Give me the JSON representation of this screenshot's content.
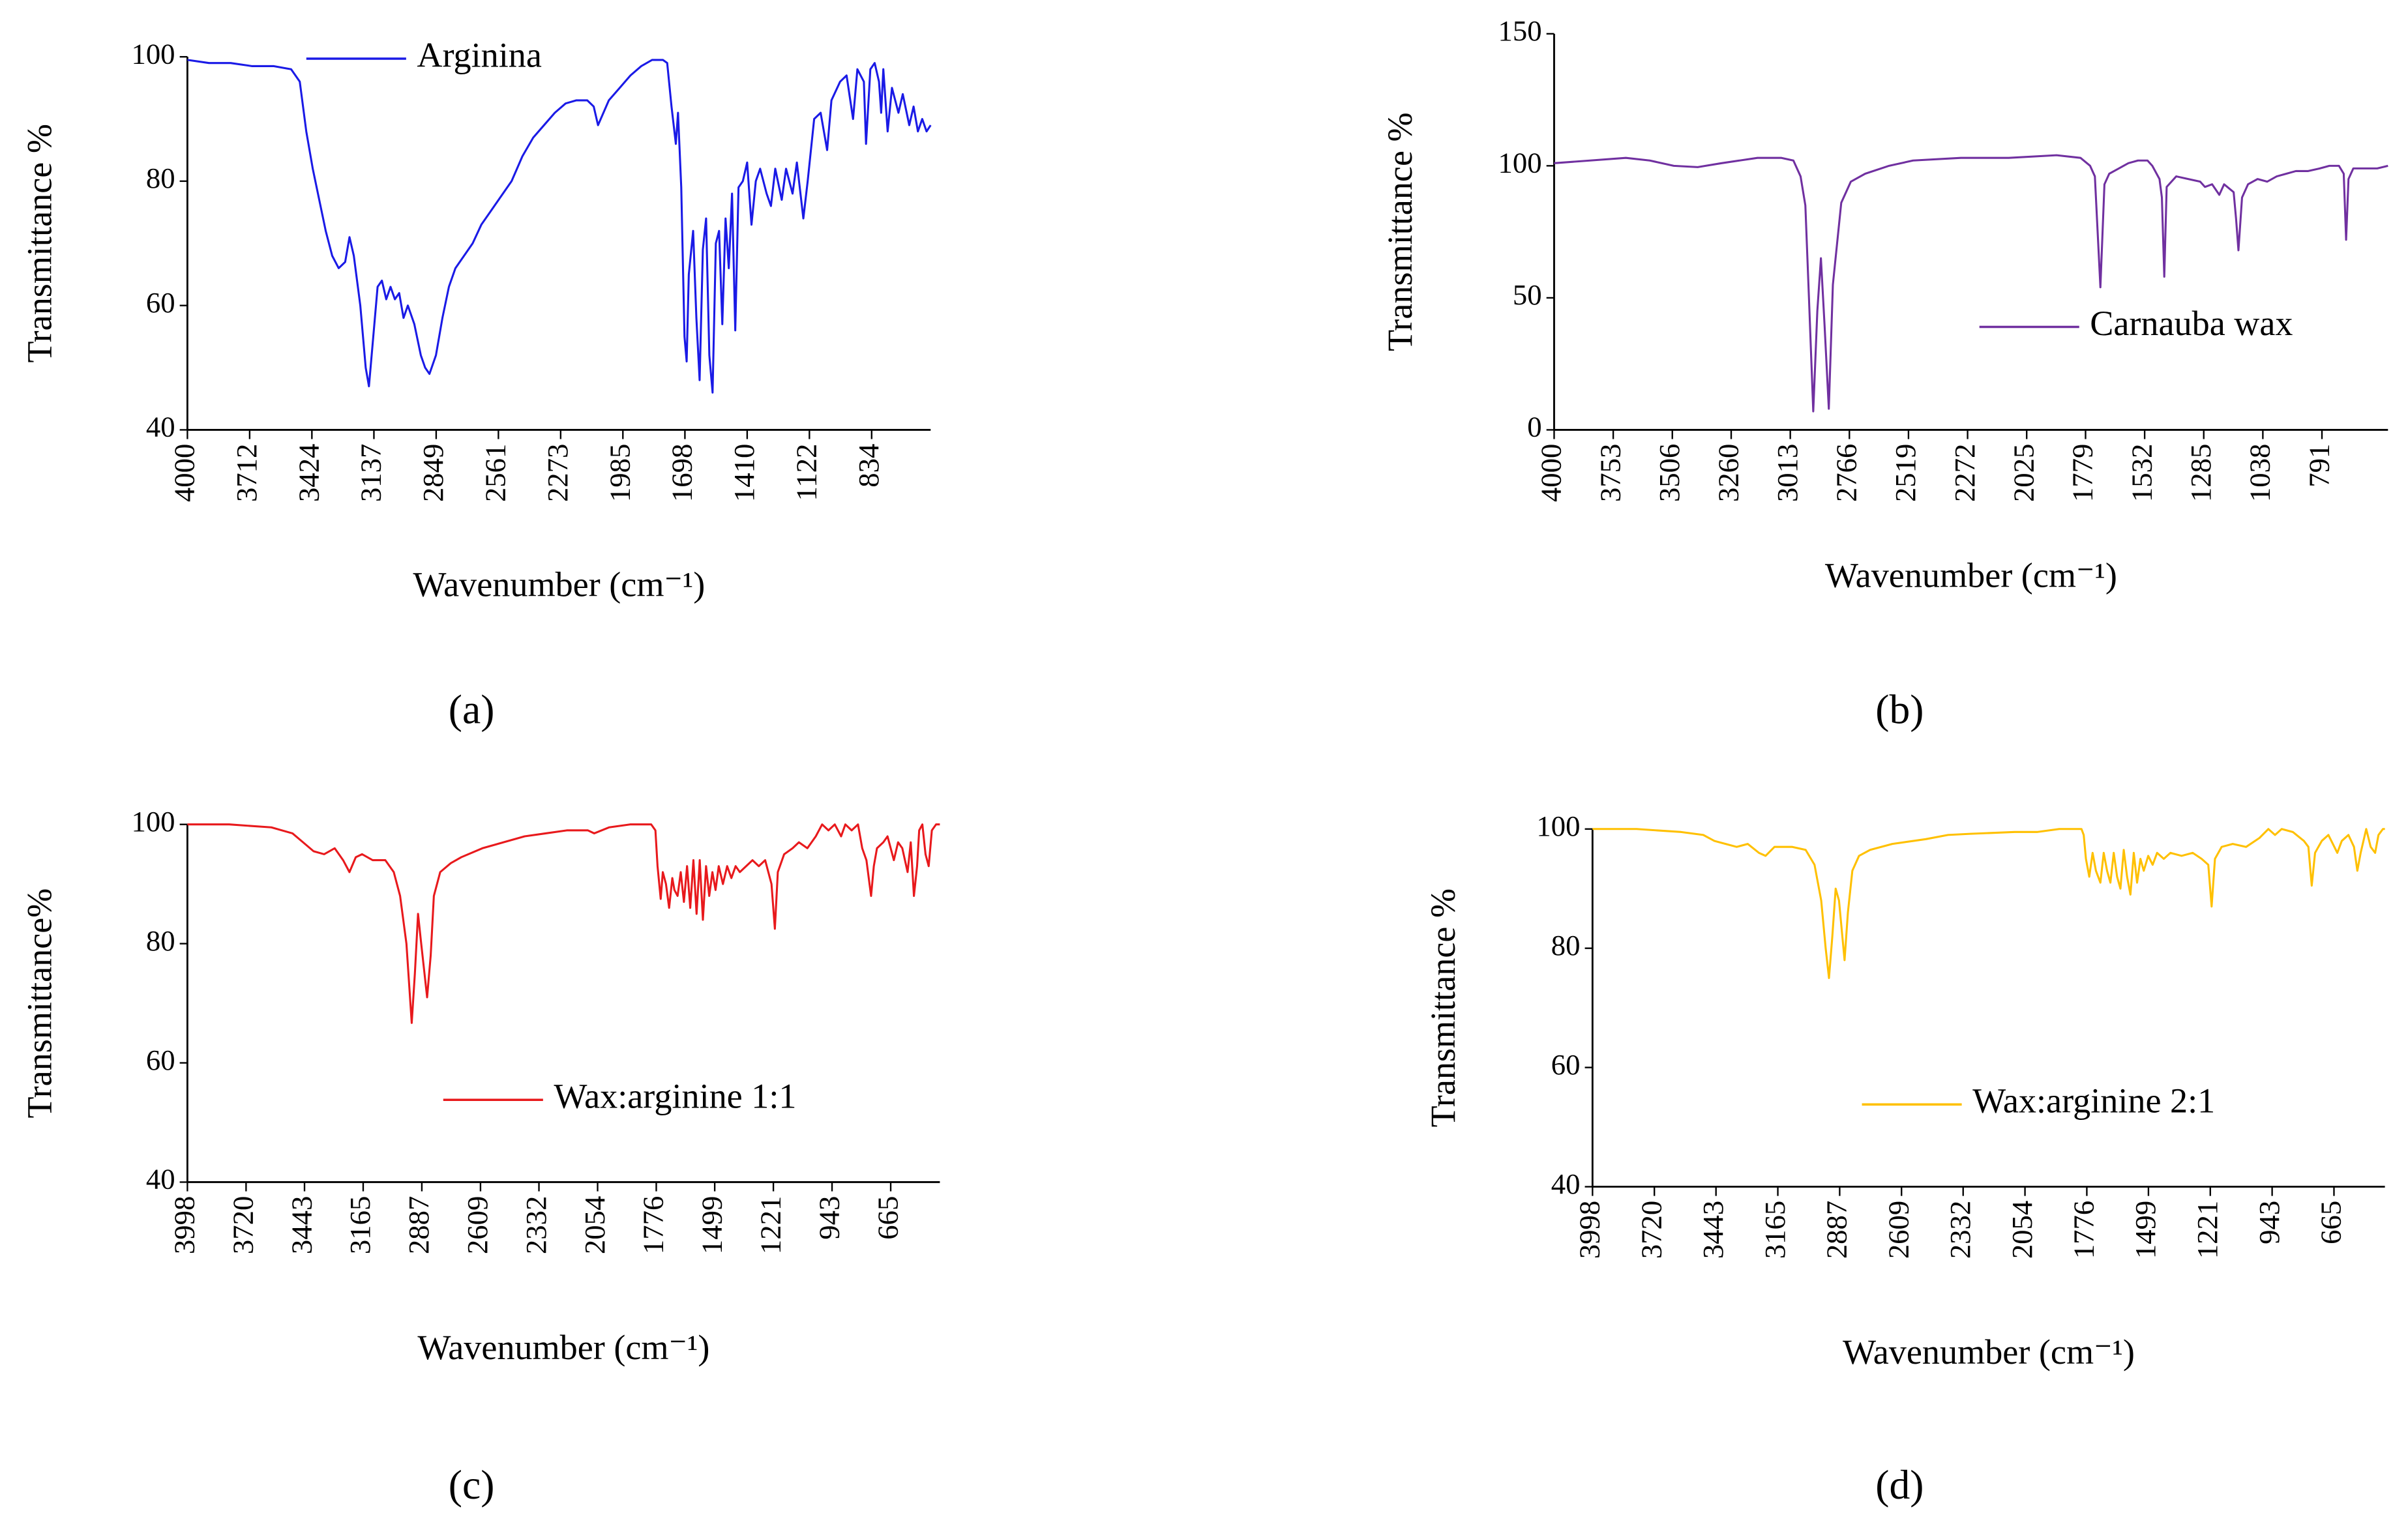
{
  "chart_data": [
    {
      "type": "line",
      "caption": "(a)",
      "xlabel": "Wavenumber (cm⁻¹)",
      "ylabel": "Transmittance %",
      "legend": "upper left",
      "xlim": [
        4000,
        561
      ],
      "ylim": [
        40,
        100
      ],
      "xticks": [
        4000,
        3712,
        3424,
        3137,
        2849,
        2561,
        2273,
        1985,
        1698,
        1410,
        1122,
        834
      ],
      "yticks": [
        40,
        60,
        80,
        100
      ],
      "x": [
        4000,
        3900,
        3800,
        3700,
        3600,
        3520,
        3480,
        3450,
        3420,
        3390,
        3360,
        3330,
        3300,
        3270,
        3250,
        3230,
        3200,
        3175,
        3160,
        3140,
        3120,
        3100,
        3080,
        3060,
        3040,
        3020,
        3000,
        2980,
        2950,
        2920,
        2900,
        2880,
        2850,
        2820,
        2790,
        2760,
        2720,
        2680,
        2640,
        2600,
        2560,
        2500,
        2450,
        2400,
        2350,
        2300,
        2250,
        2200,
        2150,
        2120,
        2100,
        2050,
        2000,
        1950,
        1900,
        1850,
        1800,
        1780,
        1760,
        1740,
        1730,
        1715,
        1700,
        1690,
        1680,
        1660,
        1645,
        1630,
        1615,
        1600,
        1585,
        1570,
        1555,
        1540,
        1525,
        1510,
        1495,
        1480,
        1465,
        1450,
        1430,
        1410,
        1390,
        1370,
        1350,
        1320,
        1300,
        1280,
        1250,
        1230,
        1200,
        1180,
        1150,
        1130,
        1100,
        1070,
        1040,
        1020,
        980,
        950,
        920,
        900,
        870,
        860,
        840,
        820,
        800,
        790,
        780,
        760,
        740,
        710,
        690,
        660,
        640,
        620,
        600,
        580,
        561
      ],
      "series": [
        {
          "name": "Arginina",
          "color": "#1a1ae6",
          "values": [
            99.5,
            99,
            99,
            98.5,
            98.5,
            98,
            96,
            88,
            82,
            77,
            72,
            68,
            66,
            67,
            71,
            68,
            60,
            50,
            47,
            55,
            63,
            64,
            61,
            63,
            61,
            62,
            58,
            60,
            57,
            52,
            50,
            49,
            52,
            58,
            63,
            66,
            68,
            70,
            73,
            75,
            77,
            80,
            84,
            87,
            89,
            91,
            92.5,
            93,
            93,
            92,
            89,
            93,
            95,
            97,
            98.5,
            99.5,
            99.5,
            99,
            92,
            86,
            91,
            79,
            55,
            51,
            65,
            72,
            58,
            48,
            69,
            74,
            52,
            46,
            70,
            72,
            57,
            74,
            66,
            78,
            56,
            79,
            80,
            83,
            73,
            80,
            82,
            78,
            76,
            82,
            77,
            82,
            78,
            83,
            74,
            80,
            90,
            91,
            85,
            93,
            96,
            97,
            90,
            98,
            96,
            86,
            98,
            99,
            96,
            91,
            98,
            88,
            95,
            91,
            94,
            89,
            92,
            88,
            90,
            88,
            89
          ]
        }
      ]
    },
    {
      "type": "line",
      "caption": "(b)",
      "xlabel": "Wavenumber (cm⁻¹)",
      "ylabel": "Transmittance %",
      "legend": "lower right",
      "xlim": [
        4000,
        515
      ],
      "ylim": [
        0,
        150
      ],
      "xticks": [
        4000,
        3753,
        3506,
        3260,
        3013,
        2766,
        2519,
        2272,
        2025,
        1779,
        1532,
        1285,
        1038,
        791
      ],
      "yticks": [
        0,
        50,
        100,
        150
      ],
      "x": [
        4000,
        3850,
        3700,
        3600,
        3500,
        3400,
        3300,
        3150,
        3050,
        3000,
        2970,
        2950,
        2935,
        2917,
        2900,
        2885,
        2870,
        2852,
        2835,
        2800,
        2760,
        2700,
        2600,
        2500,
        2300,
        2100,
        1900,
        1800,
        1760,
        1740,
        1717,
        1700,
        1680,
        1640,
        1600,
        1560,
        1520,
        1500,
        1470,
        1460,
        1450,
        1440,
        1400,
        1350,
        1300,
        1280,
        1250,
        1220,
        1200,
        1160,
        1150,
        1140,
        1125,
        1100,
        1060,
        1020,
        980,
        940,
        900,
        850,
        800,
        760,
        720,
        700,
        690,
        680,
        660,
        620,
        560,
        515
      ],
      "series": [
        {
          "name": "Carnauba wax",
          "color": "#7030a0",
          "values": [
            101,
            102,
            103,
            102,
            100,
            99.5,
            101,
            103,
            103,
            102,
            96,
            85,
            50,
            7,
            45,
            65,
            40,
            8,
            55,
            86,
            94,
            97,
            100,
            102,
            103,
            103,
            104,
            103,
            100,
            96,
            54,
            93,
            97,
            99,
            101,
            102,
            102,
            100,
            95,
            88,
            58,
            92,
            96,
            95,
            94,
            92,
            93,
            89,
            93,
            90,
            80,
            68,
            88,
            93,
            95,
            94,
            96,
            97,
            98,
            98,
            99,
            100,
            100,
            97,
            72,
            95,
            99,
            99,
            99,
            100
          ]
        }
      ]
    },
    {
      "type": "line",
      "caption": "(c)",
      "xlabel": "Wavenumber (cm⁻¹)",
      "ylabel": "Transmittance%",
      "legend": "lower center",
      "xlim": [
        3998,
        432
      ],
      "ylim": [
        40,
        100
      ],
      "xticks": [
        3998,
        3720,
        3443,
        3165,
        2887,
        2609,
        2332,
        2054,
        1776,
        1499,
        1221,
        943,
        665
      ],
      "yticks": [
        40,
        60,
        80,
        100
      ],
      "x": [
        3998,
        3800,
        3600,
        3500,
        3450,
        3400,
        3350,
        3300,
        3260,
        3230,
        3200,
        3170,
        3120,
        3060,
        3020,
        2990,
        2960,
        2935,
        2920,
        2905,
        2890,
        2862,
        2845,
        2830,
        2800,
        2750,
        2700,
        2600,
        2500,
        2400,
        2300,
        2200,
        2100,
        2070,
        2000,
        1900,
        1800,
        1780,
        1770,
        1755,
        1745,
        1730,
        1715,
        1700,
        1690,
        1675,
        1660,
        1645,
        1630,
        1615,
        1600,
        1585,
        1570,
        1555,
        1540,
        1525,
        1510,
        1495,
        1480,
        1460,
        1440,
        1420,
        1400,
        1380,
        1350,
        1320,
        1290,
        1260,
        1230,
        1214,
        1200,
        1170,
        1130,
        1100,
        1060,
        1020,
        990,
        960,
        930,
        900,
        880,
        850,
        820,
        800,
        780,
        758,
        745,
        730,
        700,
        680,
        650,
        630,
        610,
        585,
        570,
        555,
        540,
        530,
        515,
        500,
        485,
        470,
        450,
        432
      ],
      "series": [
        {
          "name": "Wax:arginine 1:1",
          "color": "#e8191c",
          "values": [
            100,
            100,
            99.5,
            98.5,
            97,
            95.5,
            95,
            96,
            94,
            92,
            94.5,
            95,
            94,
            94,
            92,
            88,
            80,
            66.7,
            75,
            85,
            80,
            71,
            78,
            88,
            92,
            93.5,
            94.5,
            96,
            97,
            98,
            98.5,
            99,
            99,
            98.5,
            99.5,
            100,
            100,
            99,
            93,
            87.5,
            92,
            90,
            86,
            91,
            89,
            88,
            92,
            87,
            93,
            86,
            94,
            85,
            94,
            84,
            93,
            88,
            92,
            89,
            93,
            90,
            93,
            91,
            93,
            92,
            93,
            94,
            93,
            94,
            90,
            82.5,
            92,
            95,
            96,
            97,
            96,
            98,
            100,
            99,
            100,
            98,
            100,
            99,
            100,
            96,
            94,
            88,
            93,
            96,
            97,
            98,
            94,
            97,
            96,
            92,
            97,
            88,
            93,
            99,
            100,
            95,
            93,
            99,
            100,
            100
          ]
        }
      ]
    },
    {
      "type": "line",
      "caption": "(d)",
      "xlabel": "Wavenumber (cm⁻¹)",
      "ylabel": "Transmittance %",
      "legend": "lower center",
      "xlim": [
        3998,
        436
      ],
      "ylim": [
        40,
        100
      ],
      "xticks": [
        3998,
        3720,
        3443,
        3165,
        2887,
        2609,
        2332,
        2054,
        1776,
        1499,
        1221,
        943,
        665
      ],
      "yticks": [
        40,
        60,
        80,
        100
      ],
      "x": [
        3998,
        3800,
        3600,
        3500,
        3450,
        3400,
        3350,
        3300,
        3250,
        3220,
        3180,
        3100,
        3040,
        3000,
        2970,
        2950,
        2935,
        2920,
        2905,
        2890,
        2865,
        2850,
        2830,
        2800,
        2750,
        2650,
        2500,
        2400,
        2300,
        2100,
        2000,
        1900,
        1800,
        1790,
        1780,
        1765,
        1750,
        1735,
        1715,
        1700,
        1685,
        1670,
        1655,
        1640,
        1625,
        1610,
        1595,
        1580,
        1565,
        1550,
        1535,
        1520,
        1500,
        1480,
        1460,
        1430,
        1400,
        1350,
        1300,
        1260,
        1230,
        1215,
        1200,
        1170,
        1120,
        1060,
        1000,
        960,
        930,
        900,
        850,
        800,
        780,
        765,
        750,
        720,
        690,
        650,
        630,
        600,
        575,
        560,
        545,
        520,
        500,
        480,
        465,
        445,
        436
      ],
      "series": [
        {
          "name": "Wax:arginine 2:1",
          "color": "#ffc000",
          "values": [
            100,
            100,
            99.5,
            99,
            98,
            97.5,
            97,
            97.5,
            96,
            95.5,
            97,
            97,
            96.5,
            94,
            88,
            80,
            75,
            82,
            90,
            88,
            78,
            86,
            93,
            95.5,
            96.5,
            97.5,
            98.3,
            99,
            99.2,
            99.5,
            99.5,
            100,
            100,
            99,
            95,
            92,
            96,
            93,
            91,
            96,
            93,
            91,
            96,
            92,
            90,
            96.5,
            92,
            89,
            96,
            91,
            95,
            93,
            95.5,
            94,
            96,
            95,
            96,
            95.5,
            96,
            95,
            94,
            87,
            95,
            97,
            97.5,
            97,
            98.5,
            100,
            99,
            100,
            99.5,
            98,
            97,
            90.5,
            96,
            98,
            99,
            96,
            98,
            99,
            97,
            93,
            96,
            100,
            97,
            96,
            99,
            100,
            100
          ]
        }
      ]
    }
  ]
}
